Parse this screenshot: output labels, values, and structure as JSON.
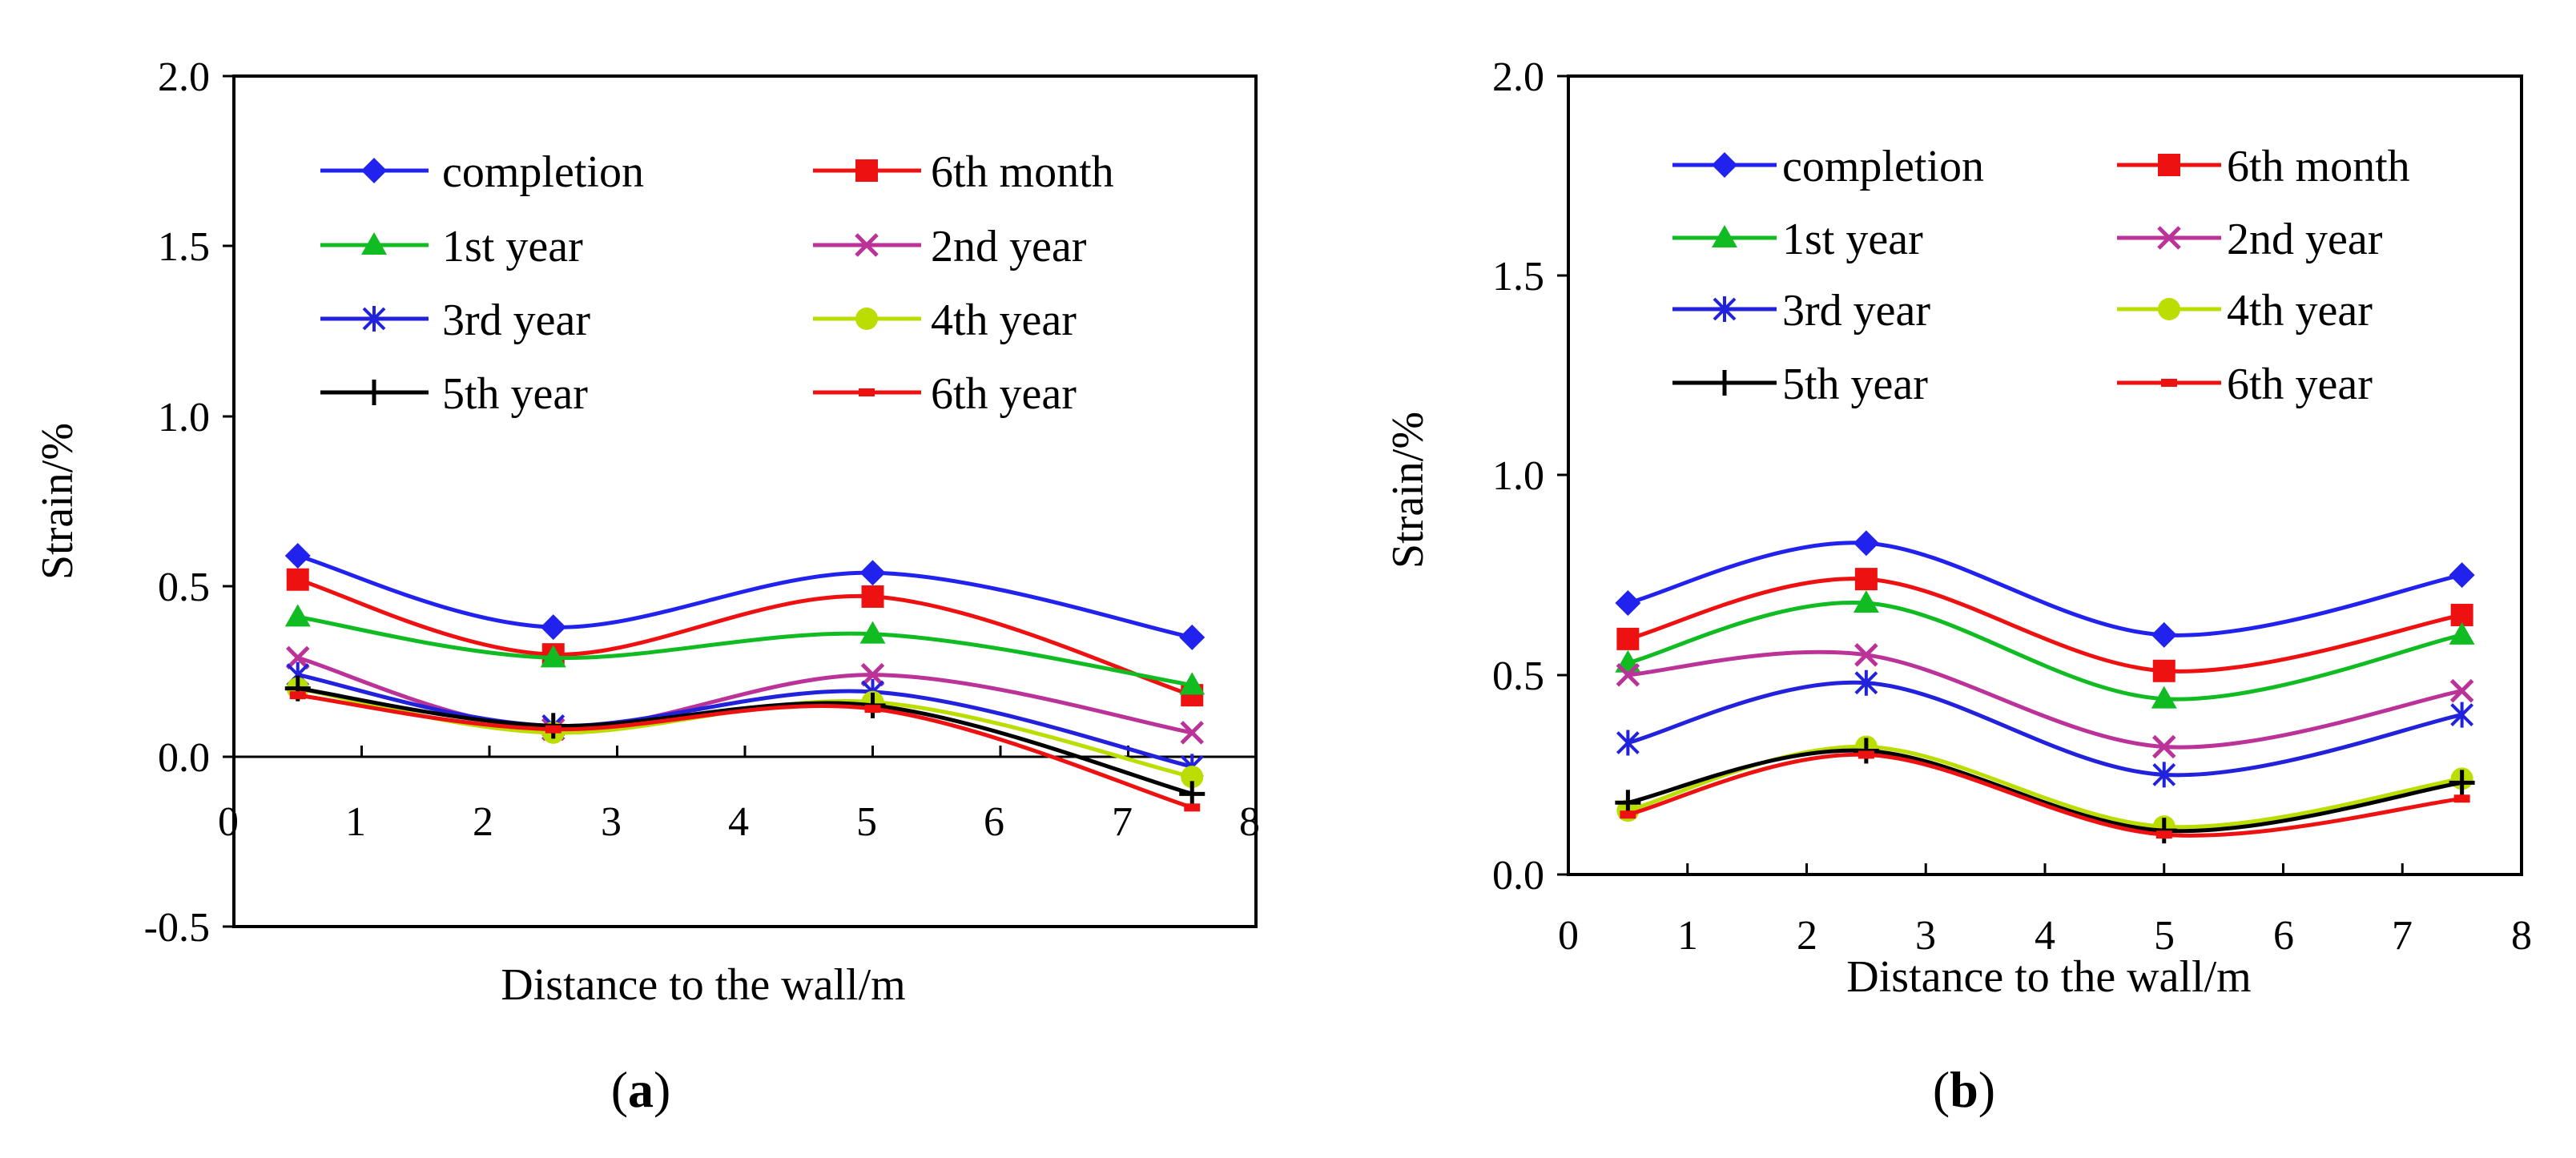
{
  "chart_data": [
    {
      "type": "line",
      "panel_label": "a",
      "xlabel": "Distance to the wall/m",
      "ylabel": "Strain/%",
      "xlim": [
        0,
        8
      ],
      "ylim": [
        -0.5,
        2.0
      ],
      "xticks": [
        "0",
        "1",
        "2",
        "3",
        "4",
        "5",
        "6",
        "7",
        "8"
      ],
      "yticks": [
        "-0.5",
        "0.0",
        "0.5",
        "1.0",
        "1.5",
        "2.0"
      ],
      "zero_line": true,
      "x": [
        0.5,
        2.5,
        5.0,
        7.5
      ],
      "series": [
        {
          "name": "completion",
          "color": "#2222ee",
          "marker": "diamond",
          "values": [
            0.59,
            0.38,
            0.54,
            0.35
          ]
        },
        {
          "name": "6th month",
          "color": "#ee1111",
          "marker": "square",
          "values": [
            0.52,
            0.3,
            0.47,
            0.18
          ]
        },
        {
          "name": "1st year",
          "color": "#11bb22",
          "marker": "triangle",
          "values": [
            0.41,
            0.29,
            0.36,
            0.21
          ]
        },
        {
          "name": "2nd year",
          "color": "#bb3399",
          "marker": "x",
          "values": [
            0.29,
            0.08,
            0.24,
            0.07
          ]
        },
        {
          "name": "3rd year",
          "color": "#2222dd",
          "marker": "star",
          "values": [
            0.24,
            0.09,
            0.19,
            -0.03
          ]
        },
        {
          "name": "4th year",
          "color": "#bbdd00",
          "marker": "circle",
          "values": [
            0.2,
            0.07,
            0.16,
            -0.06
          ]
        },
        {
          "name": "5th year",
          "color": "#000000",
          "marker": "plus",
          "values": [
            0.2,
            0.09,
            0.15,
            -0.11
          ]
        },
        {
          "name": "6th year",
          "color": "#ee1111",
          "marker": "dash",
          "values": [
            0.18,
            0.08,
            0.14,
            -0.15
          ]
        }
      ]
    },
    {
      "type": "line",
      "panel_label": "b",
      "xlabel": "Distance to the wall/m",
      "ylabel": "Strain/%",
      "xlim": [
        0,
        8
      ],
      "ylim": [
        0.0,
        2.0
      ],
      "xticks": [
        "0",
        "1",
        "2",
        "3",
        "4",
        "5",
        "6",
        "7",
        "8"
      ],
      "yticks": [
        "0.0",
        "0.5",
        "1.0",
        "1.5",
        "2.0"
      ],
      "zero_line": false,
      "x": [
        0.5,
        2.5,
        5.0,
        7.5
      ],
      "series": [
        {
          "name": "completion",
          "color": "#2222ee",
          "marker": "diamond",
          "values": [
            0.68,
            0.83,
            0.6,
            0.75
          ]
        },
        {
          "name": "6th month",
          "color": "#ee1111",
          "marker": "square",
          "values": [
            0.59,
            0.74,
            0.51,
            0.65
          ]
        },
        {
          "name": "1st year",
          "color": "#11bb22",
          "marker": "triangle",
          "values": [
            0.53,
            0.68,
            0.44,
            0.6
          ]
        },
        {
          "name": "2nd year",
          "color": "#bb3399",
          "marker": "x",
          "values": [
            0.5,
            0.55,
            0.32,
            0.46
          ]
        },
        {
          "name": "3rd year",
          "color": "#2222dd",
          "marker": "star",
          "values": [
            0.33,
            0.48,
            0.25,
            0.4
          ]
        },
        {
          "name": "4th year",
          "color": "#bbdd00",
          "marker": "circle",
          "values": [
            0.16,
            0.32,
            0.12,
            0.24
          ]
        },
        {
          "name": "5th year",
          "color": "#000000",
          "marker": "plus",
          "values": [
            0.18,
            0.31,
            0.11,
            0.23
          ]
        },
        {
          "name": "6th year",
          "color": "#ee1111",
          "marker": "dash",
          "values": [
            0.15,
            0.3,
            0.1,
            0.19
          ]
        }
      ]
    }
  ]
}
